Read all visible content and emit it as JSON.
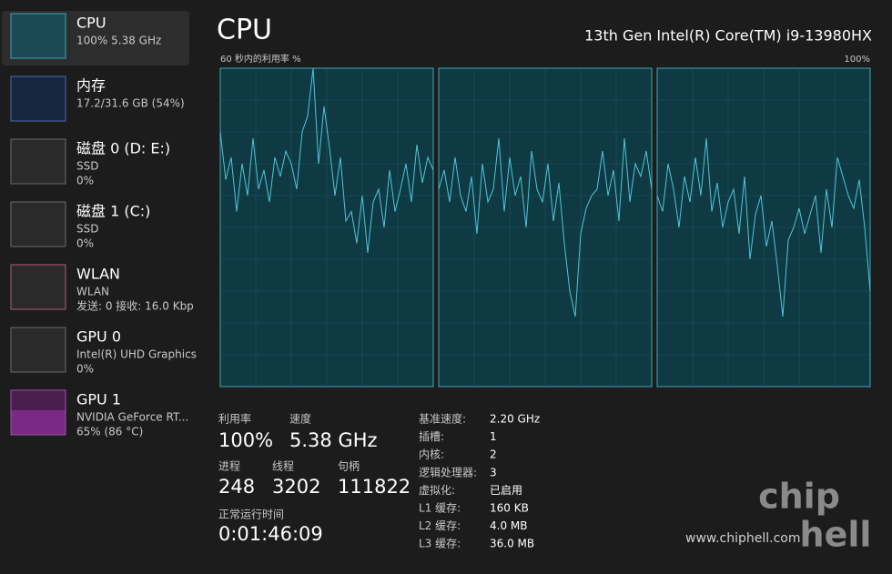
{
  "sidebar": [
    {
      "name": "CPU",
      "lines": [
        "100% 5.38 GHz"
      ]
    },
    {
      "name": "内存",
      "lines": [
        "17.2/31.6 GB (54%)"
      ]
    },
    {
      "name": "磁盘 0 (D: E:)",
      "lines": [
        "SSD",
        "0%"
      ]
    },
    {
      "name": "磁盘 1 (C:)",
      "lines": [
        "SSD",
        "0%"
      ]
    },
    {
      "name": "WLAN",
      "lines": [
        "WLAN",
        "发送: 0 接收: 16.0 Kbp"
      ]
    },
    {
      "name": "GPU 0",
      "lines": [
        "Intel(R) UHD Graphics",
        "0%"
      ]
    },
    {
      "name": "GPU 1",
      "lines": [
        "NVIDIA GeForce RT...",
        "65% (86 °C)"
      ]
    }
  ],
  "header": {
    "title": "CPU",
    "model": "13th Gen Intel(R) Core(TM) i9-13980HX"
  },
  "graph": {
    "label": "60 秒内的利用率 %",
    "max_label": "100%",
    "ylim": [
      0,
      100
    ],
    "panels": [
      {
        "values": [
          80,
          65,
          72,
          55,
          70,
          60,
          78,
          62,
          68,
          58,
          72,
          66,
          74,
          70,
          62,
          80,
          85,
          100,
          70,
          88,
          75,
          60,
          72,
          52,
          55,
          45,
          60,
          42,
          58,
          62,
          50,
          68,
          55,
          62,
          70,
          58,
          76,
          64,
          72,
          68
        ]
      },
      {
        "values": [
          62,
          68,
          58,
          72,
          60,
          55,
          66,
          48,
          70,
          58,
          62,
          78,
          55,
          72,
          60,
          66,
          50,
          74,
          62,
          58,
          70,
          52,
          64,
          45,
          30,
          22,
          48,
          56,
          60,
          62,
          74,
          60,
          68,
          52,
          78,
          58,
          70,
          66,
          74,
          62
        ]
      },
      {
        "values": [
          60,
          55,
          70,
          62,
          50,
          66,
          58,
          72,
          60,
          78,
          55,
          64,
          50,
          58,
          62,
          48,
          66,
          40,
          54,
          60,
          44,
          52,
          38,
          22,
          46,
          50,
          56,
          48,
          54,
          60,
          42,
          62,
          50,
          72,
          66,
          60,
          56,
          65,
          50,
          30
        ]
      }
    ]
  },
  "stats": {
    "utilization": {
      "label": "利用率",
      "value": "100%"
    },
    "speed": {
      "label": "速度",
      "value": "5.38 GHz"
    },
    "processes": {
      "label": "进程",
      "value": "248"
    },
    "threads": {
      "label": "线程",
      "value": "3202"
    },
    "handles": {
      "label": "句柄",
      "value": "111822"
    },
    "uptime": {
      "label": "正常运行时间",
      "value": "0:01:46:09"
    }
  },
  "details": [
    [
      "基准速度:",
      "2.20 GHz"
    ],
    [
      "插槽:",
      "1"
    ],
    [
      "内核:",
      "2"
    ],
    [
      "逻辑处理器:",
      "3"
    ],
    [
      "虚拟化:",
      "已启用"
    ],
    [
      "L1 缓存:",
      "160 KB"
    ],
    [
      "L2 缓存:",
      "4.0 MB"
    ],
    [
      "L3 缓存:",
      "36.0 MB"
    ]
  ],
  "watermark": {
    "url": "www.chiphell.com",
    "logo": [
      "chip",
      "hell"
    ]
  }
}
